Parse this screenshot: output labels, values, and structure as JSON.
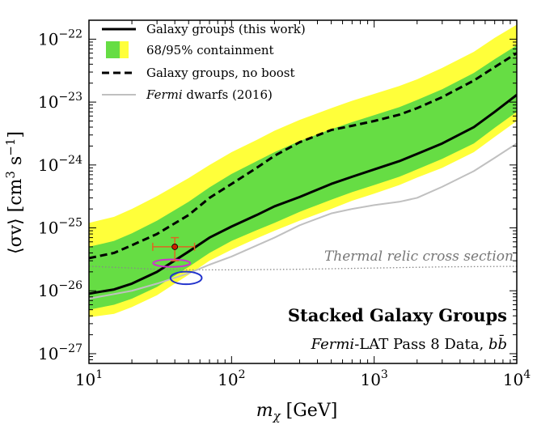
{
  "chart_data": {
    "type": "line",
    "xscale": "log",
    "yscale": "log",
    "xlim": [
      10,
      10000
    ],
    "ylim": [
      7e-28,
      2e-22
    ],
    "x_ticks": [
      {
        "value": 10,
        "base": "10",
        "exp": "1"
      },
      {
        "value": 100,
        "base": "10",
        "exp": "2"
      },
      {
        "value": 1000,
        "base": "10",
        "exp": "3"
      },
      {
        "value": 10000,
        "base": "10",
        "exp": "4"
      }
    ],
    "y_ticks": [
      {
        "value": 1e-27,
        "base": "10",
        "exp": "−27"
      },
      {
        "value": 1e-26,
        "base": "10",
        "exp": "−26"
      },
      {
        "value": 1e-25,
        "base": "10",
        "exp": "−25"
      },
      {
        "value": 1e-24,
        "base": "10",
        "exp": "−24"
      },
      {
        "value": 1e-23,
        "base": "10",
        "exp": "−23"
      },
      {
        "value": 1e-22,
        "base": "10",
        "exp": "−22"
      }
    ],
    "xlabel": {
      "main": "m",
      "sub": "χ",
      "rest": " [GeV]"
    },
    "ylabel": {
      "main": "⟨σv⟩ [cm",
      "sup1": "3",
      "mid": " s",
      "sup2": "−1",
      "end": "]"
    },
    "colors": {
      "band95": "#ffff3a",
      "band68": "#66dd44",
      "main": "#000000",
      "fermi": "#c0c0c0",
      "relic": "#888888",
      "magenta": "#cc33cc",
      "blue": "#2233cc",
      "point": "#cc2200",
      "point_err": "#dd6622"
    },
    "series": [
      {
        "name": "Galaxy groups (this work)",
        "style": "solid-black",
        "x": [
          10,
          15,
          20,
          30,
          50,
          70,
          100,
          150,
          200,
          300,
          500,
          700,
          1000,
          1500,
          2000,
          3000,
          5000,
          7000,
          10000
        ],
        "y": [
          9e-27,
          1.05e-26,
          1.3e-26,
          2e-26,
          4.2e-26,
          7e-26,
          1.05e-25,
          1.6e-25,
          2.2e-25,
          3.1e-25,
          5e-25,
          6.5e-25,
          8.5e-25,
          1.15e-24,
          1.5e-24,
          2.2e-24,
          4e-24,
          7e-24,
          1.3e-23
        ]
      },
      {
        "name": "Galaxy groups, no boost",
        "style": "dashed-black",
        "x": [
          10,
          15,
          20,
          30,
          50,
          70,
          100,
          150,
          200,
          300,
          500,
          700,
          1000,
          1500,
          2000,
          3000,
          5000,
          7000,
          10000
        ],
        "y": [
          3.3e-26,
          4e-26,
          5.3e-26,
          8e-26,
          1.6e-25,
          3e-25,
          5e-25,
          9e-25,
          1.4e-24,
          2.3e-24,
          3.6e-24,
          4.2e-24,
          5e-24,
          6.3e-24,
          8e-24,
          1.2e-23,
          2.2e-23,
          3.6e-23,
          6e-23
        ]
      },
      {
        "name": "Fermi dwarfs (2016)",
        "style": "gray",
        "x": [
          10,
          20,
          30,
          50,
          70,
          100,
          200,
          300,
          500,
          700,
          1000,
          1500,
          2000,
          3000,
          5000,
          7000,
          10000
        ],
        "y": [
          7.5e-27,
          1e-26,
          1.3e-26,
          1.9e-26,
          2.6e-26,
          3.5e-26,
          7e-26,
          1.1e-25,
          1.7e-25,
          2e-25,
          2.3e-25,
          2.6e-25,
          3e-25,
          4.5e-25,
          8e-25,
          1.3e-24,
          2.2e-24
        ]
      },
      {
        "name": "Thermal relic cross section",
        "style": "dotted-gray",
        "x": [
          10,
          20,
          30,
          50,
          100,
          300,
          1000,
          3000,
          10000
        ],
        "y": [
          2.45e-26,
          2.3e-26,
          2.2e-26,
          2.15e-26,
          2.15e-26,
          2.2e-26,
          2.3e-26,
          2.4e-26,
          2.45e-26
        ]
      }
    ],
    "bands": [
      {
        "name": "95% containment",
        "x": [
          10,
          15,
          20,
          30,
          50,
          70,
          100,
          150,
          200,
          300,
          500,
          700,
          1000,
          1500,
          2000,
          3000,
          5000,
          7000,
          10000
        ],
        "lower": [
          3.8e-27,
          4.3e-27,
          5.5e-27,
          8.5e-27,
          1.8e-26,
          3e-26,
          4.5e-26,
          6.8e-26,
          9e-26,
          1.3e-25,
          2e-25,
          2.7e-25,
          3.5e-25,
          4.8e-25,
          6.3e-25,
          9e-25,
          1.6e-24,
          2.8e-24,
          5e-24
        ],
        "upper": [
          1.2e-25,
          1.5e-25,
          2e-25,
          3.2e-25,
          6.2e-25,
          1e-24,
          1.6e-24,
          2.5e-24,
          3.5e-24,
          5.2e-24,
          8e-24,
          1.05e-23,
          1.35e-23,
          1.8e-23,
          2.3e-23,
          3.5e-23,
          6.3e-23,
          1.05e-22,
          1.7e-22
        ]
      },
      {
        "name": "68% containment",
        "x": [
          10,
          15,
          20,
          30,
          50,
          70,
          100,
          150,
          200,
          300,
          500,
          700,
          1000,
          1500,
          2000,
          3000,
          5000,
          7000,
          10000
        ],
        "lower": [
          5e-27,
          6e-27,
          7.5e-27,
          1.15e-26,
          2.4e-26,
          4e-26,
          6.2e-26,
          9.2e-26,
          1.2e-25,
          1.8e-25,
          2.8e-25,
          3.7e-25,
          4.8e-25,
          6.5e-25,
          8.5e-25,
          1.25e-24,
          2.2e-24,
          3.9e-24,
          7e-24
        ],
        "upper": [
          5e-26,
          6.2e-26,
          8.2e-26,
          1.3e-25,
          2.6e-25,
          4.4e-25,
          7.2e-25,
          1.15e-24,
          1.6e-24,
          2.4e-24,
          3.7e-24,
          4.8e-24,
          6.2e-24,
          8.3e-24,
          1.08e-23,
          1.6e-23,
          2.9e-23,
          4.8e-23,
          8e-23
        ]
      }
    ],
    "data_point": {
      "x": 40,
      "y": 5e-26,
      "x_err": [
        28,
        55
      ],
      "y_err": [
        3e-26,
        7e-26
      ]
    },
    "contours": [
      {
        "name": "magenta-contour",
        "color_key": "magenta",
        "center": [
          38,
          2.75e-26
        ],
        "half_width_dex": 0.13,
        "half_height_dex": 0.06
      },
      {
        "name": "blue-contour",
        "color_key": "blue",
        "center": [
          48,
          1.6e-26
        ],
        "half_width_dex": 0.11,
        "half_height_dex": 0.1
      }
    ],
    "legend": {
      "position": "top-left",
      "items": [
        {
          "label": "Galaxy groups (this work)",
          "style": "solid-black"
        },
        {
          "label": "68/95% containment",
          "style": "band"
        },
        {
          "label": "Galaxy groups, no boost",
          "style": "dashed-black"
        },
        {
          "label_italic": "Fermi",
          "label_rest": " dwarfs (2016)",
          "style": "gray"
        }
      ]
    },
    "annotations": {
      "relic_label": "Thermal relic cross section",
      "stack_title": "Stacked Galaxy Groups",
      "stack_sub_italic": "Fermi",
      "stack_sub_rest": "-LAT Pass 8 Data, ",
      "stack_sub_channel": "bb̄"
    }
  }
}
